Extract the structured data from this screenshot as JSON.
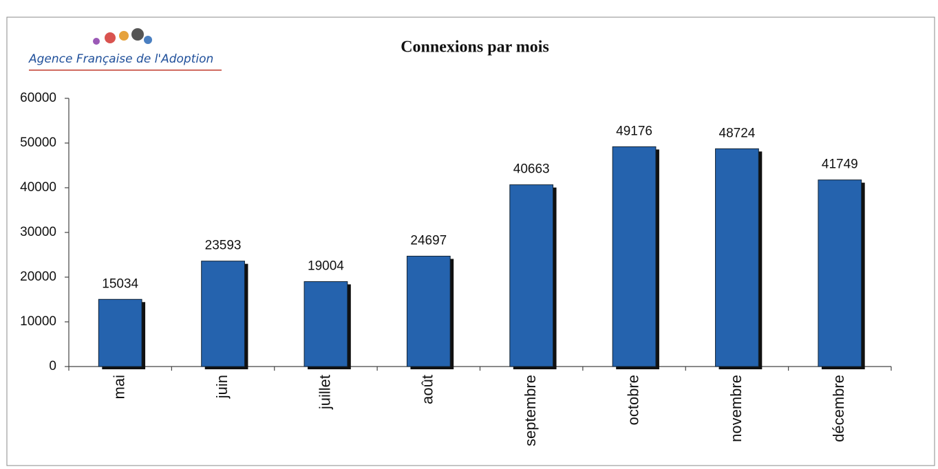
{
  "chart_data": {
    "type": "bar",
    "logo": "Agence Française de l'Adoption",
    "title": "Connexions par mois",
    "categories": [
      "mai",
      "juin",
      "juillet",
      "août",
      "septembre",
      "octobre",
      "novembre",
      "décembre"
    ],
    "values": [
      15034,
      23593,
      19004,
      24697,
      40663,
      49176,
      48724,
      41749
    ],
    "color": "#2563ae",
    "ylim": [
      0,
      60000
    ],
    "yticks": [
      0,
      10000,
      20000,
      30000,
      40000,
      50000,
      60000
    ],
    "grid": false
  }
}
